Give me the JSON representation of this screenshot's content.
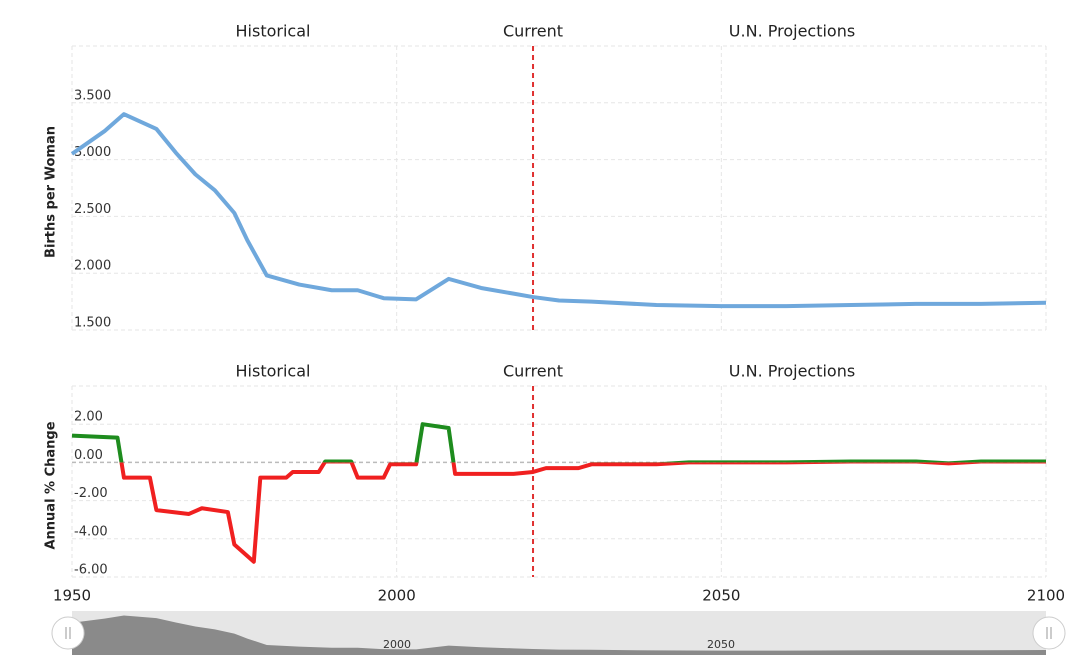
{
  "chart_data": [
    {
      "type": "line",
      "ylabel": "Births per Woman",
      "annotations": [
        "Historical",
        "Current",
        "U.N. Projections"
      ],
      "current_year": 2021,
      "x": [
        1950,
        1955,
        1958,
        1963,
        1966,
        1969,
        1972,
        1975,
        1977,
        1980,
        1985,
        1990,
        1994,
        1998,
        2003,
        2008,
        2013,
        2018,
        2021,
        2025,
        2030,
        2040,
        2050,
        2060,
        2070,
        2080,
        2090,
        2100
      ],
      "series": [
        {
          "name": "Births per Woman",
          "color": "#6fa8dc",
          "values": [
            3.05,
            3.25,
            3.4,
            3.27,
            3.06,
            2.87,
            2.73,
            2.53,
            2.29,
            1.98,
            1.9,
            1.85,
            1.85,
            1.78,
            1.77,
            1.95,
            1.87,
            1.82,
            1.79,
            1.76,
            1.75,
            1.72,
            1.71,
            1.71,
            1.72,
            1.73,
            1.73,
            1.74
          ]
        }
      ],
      "xlim": [
        1950,
        2100
      ],
      "ylim": [
        1.5,
        4.0
      ],
      "yticks": [
        {
          "value": 1.5,
          "label": "1.500"
        },
        {
          "value": 2.0,
          "label": "2.000"
        },
        {
          "value": 2.5,
          "label": "2.500"
        },
        {
          "value": 3.0,
          "label": "3.000"
        },
        {
          "value": 3.5,
          "label": "3.500"
        }
      ],
      "grid": true
    },
    {
      "type": "signed_line",
      "ylabel": "Annual % Change",
      "annotations": [
        "Historical",
        "Current",
        "U.N. Projections"
      ],
      "current_year": 2021,
      "x": [
        1950,
        1957,
        1958,
        1962,
        1963,
        1968,
        1970,
        1974,
        1975,
        1978,
        1979,
        1983,
        1984,
        1988,
        1989,
        1993,
        1994,
        1998,
        1999,
        2003,
        2004,
        2008,
        2009,
        2013,
        2018,
        2021,
        2023,
        2028,
        2030,
        2040,
        2045,
        2050,
        2060,
        2070,
        2080,
        2085,
        2090,
        2100
      ],
      "series": [
        {
          "name": "Annual % Change",
          "color": "#1e8c1e",
          "negative_color": "#f02020",
          "values": [
            1.4,
            1.3,
            -0.8,
            -0.8,
            -2.5,
            -2.7,
            -2.4,
            -2.6,
            -4.3,
            -5.2,
            -0.8,
            -0.8,
            -0.5,
            -0.5,
            0.05,
            0.05,
            -0.8,
            -0.8,
            -0.1,
            -0.1,
            2.0,
            1.8,
            -0.6,
            -0.6,
            -0.6,
            -0.5,
            -0.3,
            -0.3,
            -0.1,
            -0.1,
            0.0,
            0.0,
            0.0,
            0.05,
            0.05,
            -0.05,
            0.05,
            0.05
          ]
        }
      ],
      "xlim": [
        1950,
        2100
      ],
      "xticks": [
        1950,
        2000,
        2050,
        2100
      ],
      "ylim": [
        -6,
        4
      ],
      "yticks": [
        {
          "value": -6,
          "label": "-6.00"
        },
        {
          "value": -4,
          "label": "-4.00"
        },
        {
          "value": -2,
          "label": "-2.00"
        },
        {
          "value": 0,
          "label": "0.00"
        },
        {
          "value": 2,
          "label": "2.00"
        }
      ],
      "grid": true
    }
  ],
  "navigator": {
    "labels": [
      "2000",
      "2050"
    ]
  }
}
